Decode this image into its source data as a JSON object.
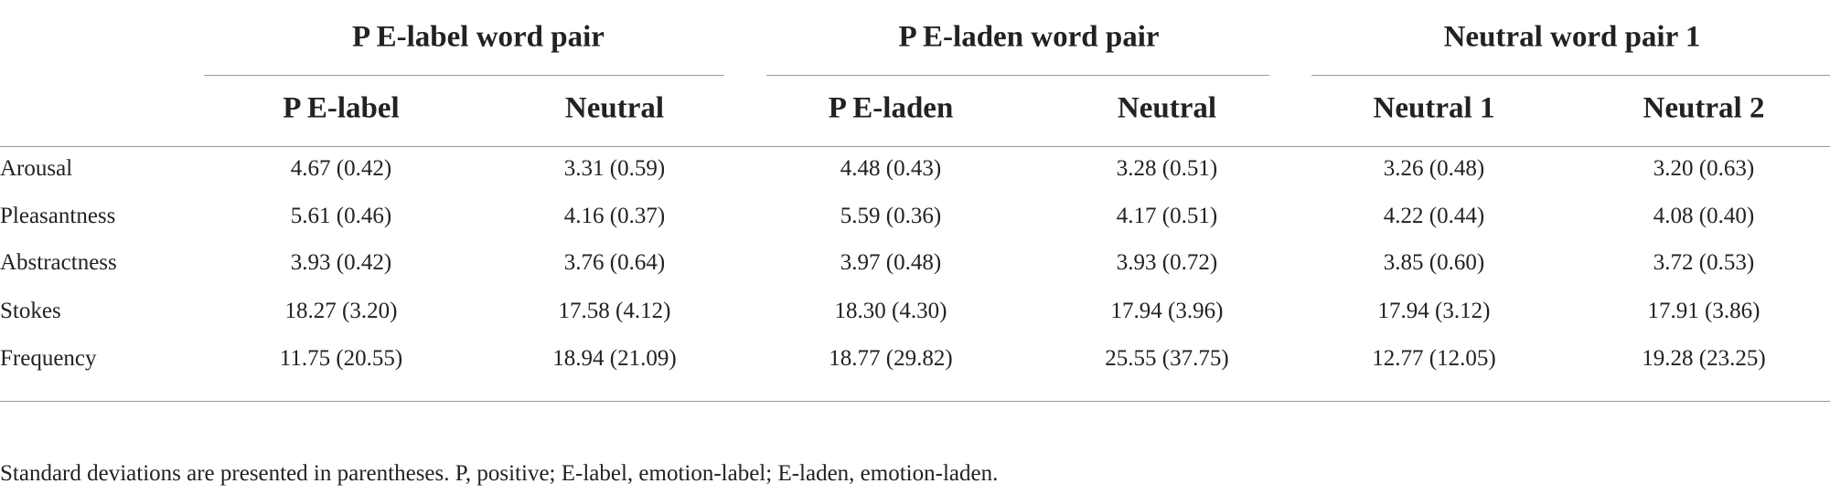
{
  "table": {
    "group_headers": [
      "P E-label word pair",
      "P E-laden word pair",
      "Neutral word pair 1"
    ],
    "column_headers": [
      "P E-label",
      "Neutral",
      "P E-laden",
      "Neutral",
      "Neutral 1",
      "Neutral 2"
    ],
    "rows": [
      [
        "Arousal",
        "4.67 (0.42)",
        "3.31 (0.59)",
        "4.48 (0.43)",
        "3.28 (0.51)",
        "3.26 (0.48)",
        "3.20 (0.63)"
      ],
      [
        "Pleasantness",
        "5.61 (0.46)",
        "4.16 (0.37)",
        "5.59 (0.36)",
        "4.17 (0.51)",
        "4.22 (0.44)",
        "4.08 (0.40)"
      ],
      [
        "Abstractness",
        "3.93 (0.42)",
        "3.76 (0.64)",
        "3.97 (0.48)",
        "3.93 (0.72)",
        "3.85 (0.60)",
        "3.72 (0.53)"
      ],
      [
        "Stokes",
        "18.27 (3.20)",
        "17.58 (4.12)",
        "18.30 (4.30)",
        "17.94 (3.96)",
        "17.94 (3.12)",
        "17.91 (3.86)"
      ],
      [
        "Frequency",
        "11.75 (20.55)",
        "18.94 (21.09)",
        "18.77 (29.82)",
        "25.55 (37.75)",
        "12.77 (12.05)",
        "19.28 (23.25)"
      ]
    ],
    "footnote": "Standard deviations are presented in parentheses. P, positive; E-label, emotion-label; E-laden, emotion-laden."
  }
}
